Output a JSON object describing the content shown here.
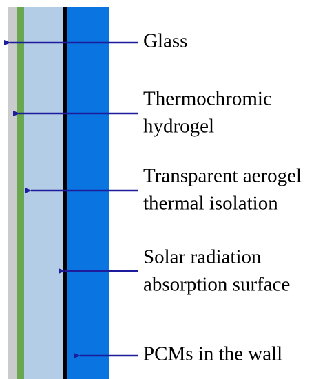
{
  "labels": [
    {
      "lines": [
        "Glass"
      ]
    },
    {
      "lines": [
        "Thermochromic",
        "hydrogel"
      ]
    },
    {
      "lines": [
        "Transparent aerogel",
        "thermal isolation"
      ]
    },
    {
      "lines": [
        "Solar radiation",
        "absorption surface"
      ]
    },
    {
      "lines": [
        "PCMs in the wall"
      ]
    }
  ]
}
